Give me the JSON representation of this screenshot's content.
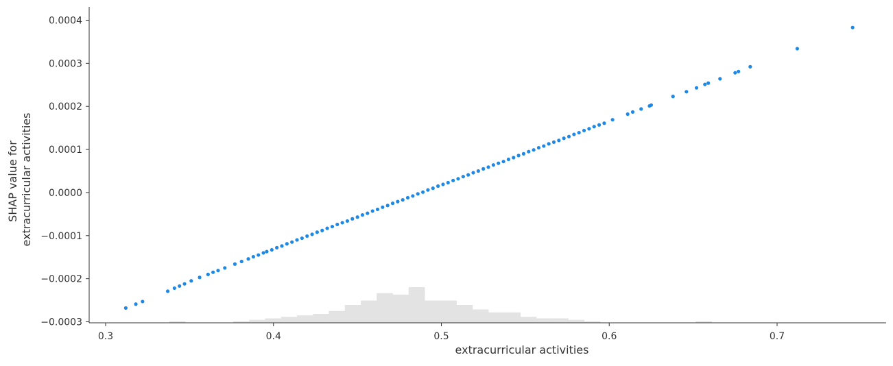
{
  "chart_data": {
    "type": "scatter",
    "xlabel": "extracurricular activities",
    "ylabel": [
      "SHAP value for",
      "extracurricular activities"
    ],
    "xlim": [
      0.292,
      0.766
    ],
    "ylim": [
      -0.000303,
      0.000432
    ],
    "x_ticks": [
      {
        "value": 0.3,
        "label": "0.3"
      },
      {
        "value": 0.4,
        "label": "0.4"
      },
      {
        "value": 0.5,
        "label": "0.5"
      },
      {
        "value": 0.6,
        "label": "0.6"
      },
      {
        "value": 0.7,
        "label": "0.7"
      }
    ],
    "y_ticks": [
      {
        "value": 0.0004,
        "label": "0.0004"
      },
      {
        "value": 0.0003,
        "label": "0.0003"
      },
      {
        "value": 0.0002,
        "label": "0.0002"
      },
      {
        "value": 0.0001,
        "label": "0.0001"
      },
      {
        "value": 0.0,
        "label": "0.0000"
      },
      {
        "value": -0.0001,
        "label": "−0.0001"
      },
      {
        "value": -0.0002,
        "label": "−0.0002"
      },
      {
        "value": -0.0003,
        "label": "−0.0003"
      }
    ],
    "grid": false,
    "series": [
      {
        "color": "#1e88e5",
        "x": [
          0.312,
          0.318,
          0.322,
          0.337,
          0.341,
          0.344,
          0.347,
          0.351,
          0.356,
          0.361,
          0.364,
          0.367,
          0.371,
          0.377,
          0.381,
          0.385,
          0.388,
          0.391,
          0.394,
          0.396,
          0.399,
          0.402,
          0.405,
          0.408,
          0.411,
          0.414,
          0.417,
          0.42,
          0.423,
          0.426,
          0.429,
          0.432,
          0.435,
          0.438,
          0.441,
          0.444,
          0.447,
          0.45,
          0.453,
          0.456,
          0.459,
          0.462,
          0.465,
          0.468,
          0.471,
          0.474,
          0.477,
          0.48,
          0.483,
          0.486,
          0.489,
          0.492,
          0.495,
          0.498,
          0.501,
          0.504,
          0.507,
          0.51,
          0.513,
          0.516,
          0.519,
          0.522,
          0.525,
          0.528,
          0.531,
          0.534,
          0.537,
          0.54,
          0.543,
          0.546,
          0.549,
          0.552,
          0.555,
          0.558,
          0.561,
          0.564,
          0.567,
          0.57,
          0.573,
          0.576,
          0.579,
          0.582,
          0.585,
          0.588,
          0.591,
          0.594,
          0.597,
          0.602,
          0.611,
          0.614,
          0.619,
          0.624,
          0.625,
          0.638,
          0.646,
          0.652,
          0.657,
          0.659,
          0.666,
          0.675,
          0.677,
          0.684,
          0.712,
          0.745
        ],
        "y": [
          -0.000268,
          -0.000259,
          -0.000253,
          -0.000229,
          -0.000222,
          -0.000217,
          -0.000212,
          -0.000205,
          -0.000197,
          -0.00019,
          -0.000185,
          -0.000181,
          -0.000175,
          -0.000166,
          -0.00016,
          -0.000154,
          -0.000149,
          -0.000145,
          -0.00014,
          -0.000137,
          -0.000133,
          -0.000128,
          -0.000124,
          -0.000119,
          -0.000115,
          -0.00011,
          -0.000106,
          -0.000101,
          -9.7e-05,
          -9.2e-05,
          -8.8e-05,
          -8.3e-05,
          -7.9e-05,
          -7.4e-05,
          -7e-05,
          -6.6e-05,
          -6.1e-05,
          -5.7e-05,
          -5.2e-05,
          -4.8e-05,
          -4.3e-05,
          -3.9e-05,
          -3.4e-05,
          -3e-05,
          -2.5e-05,
          -2.1e-05,
          -1.7e-05,
          -1.2e-05,
          -8e-06,
          -3e-06,
          1e-06,
          6e-06,
          1e-05,
          1.5e-05,
          1.9e-05,
          2.3e-05,
          2.8e-05,
          3.2e-05,
          3.7e-05,
          4.1e-05,
          4.6e-05,
          5e-05,
          5.5e-05,
          5.9e-05,
          6.4e-05,
          6.8e-05,
          7.2e-05,
          7.7e-05,
          8.1e-05,
          8.6e-05,
          9e-05,
          9.5e-05,
          9.9e-05,
          0.000104,
          0.000108,
          0.000113,
          0.000117,
          0.000121,
          0.000126,
          0.00013,
          0.000135,
          0.000139,
          0.000144,
          0.000148,
          0.000153,
          0.000157,
          0.000161,
          0.000169,
          0.000182,
          0.000187,
          0.000194,
          0.000201,
          0.000203,
          0.000223,
          0.000234,
          0.000243,
          0.000251,
          0.000254,
          0.000264,
          0.000278,
          0.000281,
          0.000292,
          0.000334,
          0.000383
        ]
      }
    ],
    "histogram": {
      "color": "#e3e3e3",
      "bin_width": 0.0095,
      "bin_starts": [
        0.3,
        0.3095,
        0.319,
        0.3285,
        0.338,
        0.3475,
        0.357,
        0.3665,
        0.376,
        0.3855,
        0.395,
        0.4045,
        0.414,
        0.4235,
        0.433,
        0.4425,
        0.452,
        0.4615,
        0.471,
        0.4805,
        0.49,
        0.4995,
        0.509,
        0.5185,
        0.528,
        0.5375,
        0.547,
        0.5565,
        0.566,
        0.5755,
        0.585,
        0.5945,
        0.604,
        0.6135,
        0.623,
        0.6325,
        0.642,
        0.6515,
        0.661,
        0.6705,
        0.68,
        0.6895,
        0.699,
        0.7085,
        0.718,
        0.7275,
        0.737
      ],
      "counts": [
        0,
        0,
        0,
        0,
        1,
        0,
        0,
        0,
        1,
        2,
        3,
        4,
        5,
        6,
        8,
        12,
        15,
        20,
        19,
        24,
        15,
        15,
        12,
        9,
        7,
        7,
        4,
        3,
        3,
        2,
        1,
        0,
        0,
        0,
        0,
        0,
        0,
        1,
        0,
        0,
        0,
        0,
        0,
        0,
        0,
        0,
        0
      ]
    }
  }
}
